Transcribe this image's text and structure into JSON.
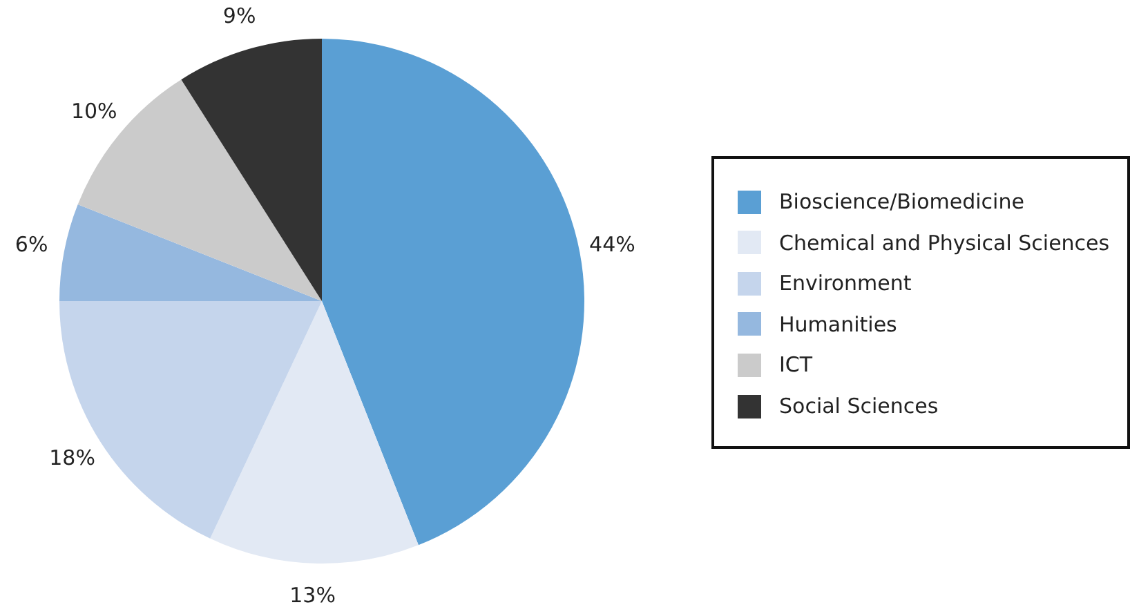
{
  "chart_data": {
    "type": "pie",
    "categories": [
      "Bioscience/Biomedicine",
      "Chemical and Physical Sciences",
      "Environment",
      "Humanities",
      "ICT",
      "Social Sciences"
    ],
    "values": [
      44,
      13,
      18,
      6,
      10,
      9
    ],
    "colors": [
      "#5a9fd4",
      "#e2e9f4",
      "#c5d5ec",
      "#95b8df",
      "#cbcbcb",
      "#333333"
    ],
    "value_labels": [
      "44%",
      "13%",
      "18%",
      "6%",
      "10%",
      "9%"
    ],
    "legend": "right"
  }
}
